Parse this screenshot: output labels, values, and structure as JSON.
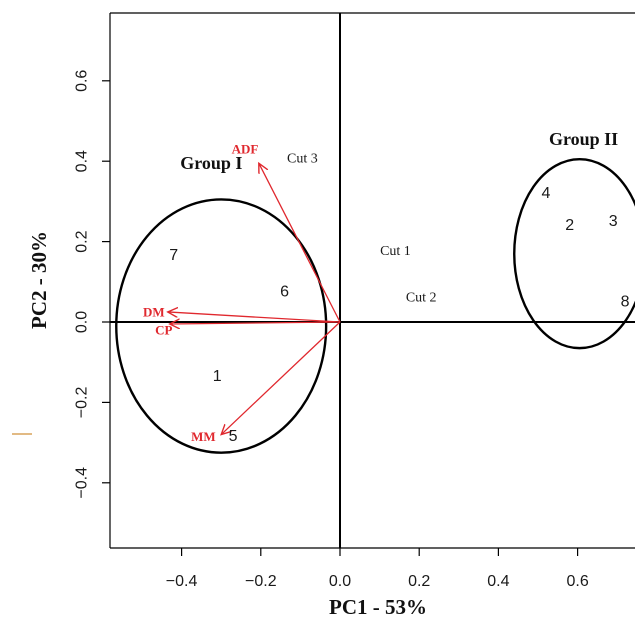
{
  "chart_data": {
    "type": "scatter",
    "title": "",
    "xlabel": "PC1 - 53%",
    "ylabel": "PC2 - 30%",
    "xlim": [
      -0.58,
      0.75
    ],
    "ylim": [
      -0.57,
      0.77
    ],
    "xticks": [
      -0.4,
      -0.2,
      0.0,
      0.2,
      0.4,
      0.6
    ],
    "xtick_labels": [
      "−0.4",
      "−0.2",
      "0.0",
      "0.2",
      "0.4",
      "0.6"
    ],
    "yticks": [
      -0.4,
      -0.2,
      0.0,
      0.2,
      0.4,
      0.6
    ],
    "ytick_labels": [
      "−0.4",
      "−0.2",
      "0.0",
      "0.2",
      "0.4",
      "0.6"
    ],
    "grid": false,
    "reference_lines": {
      "x": 0.0,
      "y": 0.0
    },
    "points": [
      {
        "label": "1",
        "x": -0.31,
        "y": -0.135
      },
      {
        "label": "5",
        "x": -0.27,
        "y": -0.285
      },
      {
        "label": "6",
        "x": -0.14,
        "y": 0.075
      },
      {
        "label": "7",
        "x": -0.42,
        "y": 0.165
      },
      {
        "label": "2",
        "x": 0.58,
        "y": 0.24
      },
      {
        "label": "3",
        "x": 0.69,
        "y": 0.25
      },
      {
        "label": "4",
        "x": 0.52,
        "y": 0.32
      },
      {
        "label": "8",
        "x": 0.72,
        "y": 0.05
      }
    ],
    "cut_labels": [
      {
        "label": "Cut 1",
        "x": 0.14,
        "y": 0.175
      },
      {
        "label": "Cut 2",
        "x": 0.205,
        "y": 0.06
      },
      {
        "label": "Cut 3",
        "x": -0.095,
        "y": 0.405
      }
    ],
    "vectors": {
      "color": "#e0282e",
      "items": [
        {
          "label": "ADF",
          "x": -0.205,
          "y": 0.395,
          "label_x": -0.24,
          "label_y": 0.43
        },
        {
          "label": "DM",
          "x": -0.435,
          "y": 0.025,
          "label_x": -0.47,
          "label_y": 0.025
        },
        {
          "label": "CP",
          "x": -0.43,
          "y": -0.005,
          "label_x": -0.445,
          "label_y": -0.02
        },
        {
          "label": "MM",
          "x": -0.3,
          "y": -0.28,
          "label_x": -0.345,
          "label_y": -0.285
        }
      ]
    },
    "groups": [
      {
        "label": "Group I",
        "cx": -0.3,
        "cy": -0.01,
        "rx": 0.265,
        "ry": 0.315,
        "label_x": -0.325,
        "label_y": 0.38
      },
      {
        "label": "Group II",
        "cx": 0.605,
        "cy": 0.17,
        "rx": 0.165,
        "ry": 0.235,
        "label_x": 0.615,
        "label_y": 0.44
      }
    ]
  }
}
